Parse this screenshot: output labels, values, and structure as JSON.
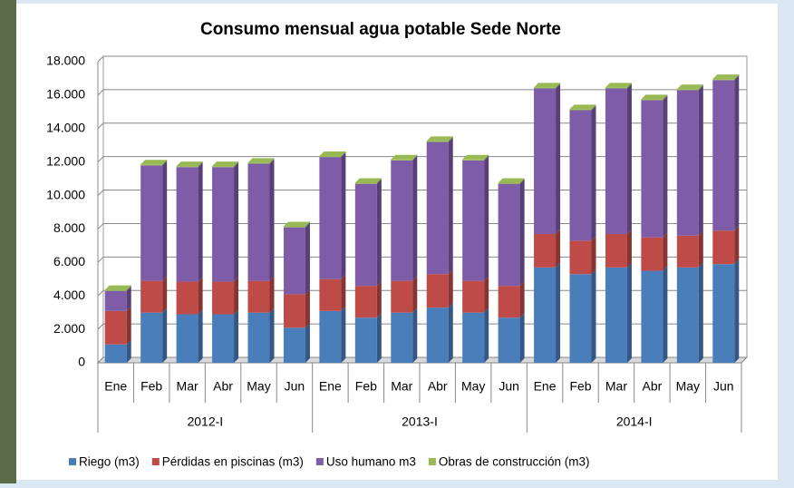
{
  "chart_data": {
    "type": "stacked_bar",
    "title": "Consumo mensual agua potable Sede Norte",
    "categories": [
      "Ene",
      "Feb",
      "Mar",
      "Abr",
      "May",
      "Jun",
      "Ene",
      "Feb",
      "Mar",
      "Abr",
      "May",
      "Jun",
      "Ene",
      "Feb",
      "Mar",
      "Abr",
      "May",
      "Jun"
    ],
    "groups": [
      "2012-I",
      "2013-I",
      "2014-I"
    ],
    "series": [
      {
        "name": "Riego (m3)",
        "color": "#4a7ebb",
        "values": [
          1100,
          3000,
          2900,
          2900,
          3000,
          2100,
          3100,
          2700,
          3000,
          3300,
          3000,
          2700,
          5700,
          5300,
          5700,
          5500,
          5700,
          5900
        ]
      },
      {
        "name": "Pérdidas en piscinas (m3)",
        "color": "#be4b48",
        "values": [
          2000,
          1900,
          1950,
          1950,
          1900,
          2000,
          1900,
          1900,
          1900,
          2000,
          1900,
          1900,
          2000,
          2000,
          2000,
          2000,
          1900,
          2000
        ]
      },
      {
        "name": "Uso humano m3",
        "color": "#7e5ca8",
        "values": [
          1200,
          6900,
          6850,
          6850,
          7000,
          4000,
          7300,
          6100,
          7200,
          7900,
          7200,
          6100,
          8700,
          7800,
          8700,
          8200,
          8700,
          9000
        ]
      },
      {
        "name": "Obras de construcción (m3)",
        "color": "#98b954",
        "values": [
          60,
          60,
          60,
          60,
          60,
          60,
          60,
          60,
          60,
          60,
          60,
          60,
          60,
          60,
          60,
          60,
          60,
          60
        ]
      }
    ],
    "ylim": [
      0,
      18000
    ],
    "yticks": [
      0,
      {
        "value": 2000,
        "label": "2.000"
      },
      {
        "value": 4000,
        "label": "4.000"
      },
      {
        "value": 6000,
        "label": "6.000"
      },
      {
        "value": 8000,
        "label": "8.000"
      },
      {
        "value": 10000,
        "label": "10.000"
      },
      {
        "value": 12000,
        "label": "12.000"
      },
      {
        "value": 14000,
        "label": "14.000"
      },
      {
        "value": 16000,
        "label": "16.000"
      },
      {
        "value": 18000,
        "label": "18.000"
      }
    ],
    "grid": true,
    "legend": "bottom"
  }
}
